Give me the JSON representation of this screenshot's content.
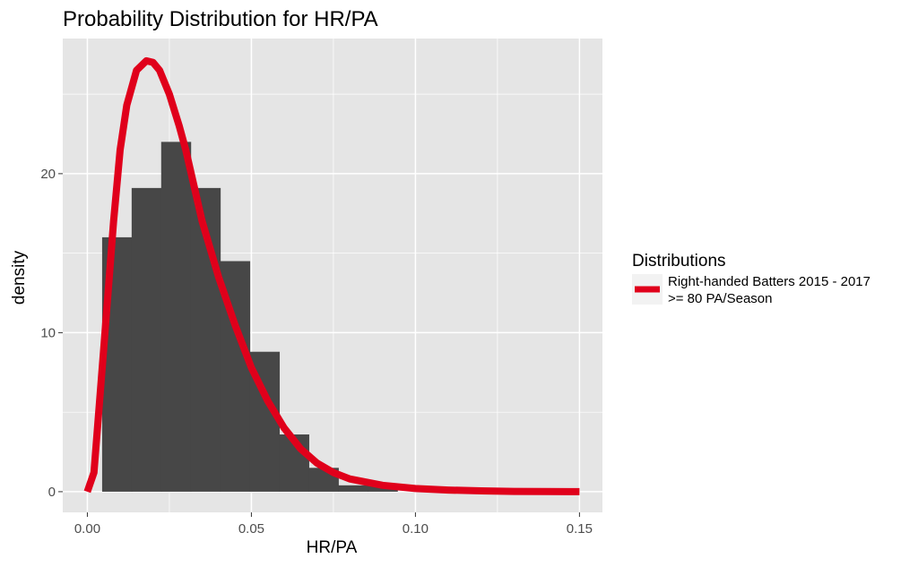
{
  "chart_data": {
    "type": "histogram+line",
    "title": "Probability Distribution for HR/PA",
    "xlabel": "HR/PA",
    "ylabel": "density",
    "xlim": [
      -0.0075,
      0.157
    ],
    "ylim": [
      -1.3,
      28.5
    ],
    "x_ticks": [
      0.0,
      0.05,
      0.1,
      0.15
    ],
    "x_tick_labels": [
      "0.00",
      "0.05",
      "0.10",
      "0.15"
    ],
    "y_ticks": [
      0,
      10,
      20
    ],
    "y_tick_labels": [
      "0",
      "10",
      "20"
    ],
    "grid": true,
    "histogram": {
      "color": "#474747",
      "bins": [
        {
          "x0": 0.0045,
          "x1": 0.0135,
          "density": 16.0
        },
        {
          "x0": 0.0135,
          "x1": 0.0225,
          "density": 19.1
        },
        {
          "x0": 0.0225,
          "x1": 0.0315,
          "density": 22.0
        },
        {
          "x0": 0.0315,
          "x1": 0.0405,
          "density": 19.1
        },
        {
          "x0": 0.0405,
          "x1": 0.0495,
          "density": 14.5
        },
        {
          "x0": 0.0495,
          "x1": 0.0585,
          "density": 8.8
        },
        {
          "x0": 0.0585,
          "x1": 0.0675,
          "density": 3.6
        },
        {
          "x0": 0.0675,
          "x1": 0.0765,
          "density": 1.5
        },
        {
          "x0": 0.0765,
          "x1": 0.0855,
          "density": 0.4
        },
        {
          "x0": 0.0855,
          "x1": 0.0945,
          "density": 0.4
        }
      ]
    },
    "series": [
      {
        "name": "Right-handed Batters 2015 - 2017\n>= 80 PA/Season",
        "color": "#e0001b",
        "x": [
          0.0,
          0.002,
          0.005,
          0.008,
          0.01,
          0.012,
          0.015,
          0.018,
          0.02,
          0.022,
          0.025,
          0.028,
          0.03,
          0.035,
          0.04,
          0.045,
          0.05,
          0.055,
          0.06,
          0.065,
          0.07,
          0.075,
          0.08,
          0.09,
          0.1,
          0.11,
          0.12,
          0.13,
          0.14,
          0.15
        ],
        "y": [
          0.0,
          1.2,
          9.0,
          17.0,
          21.5,
          24.3,
          26.5,
          27.1,
          27.0,
          26.5,
          25.0,
          23.0,
          21.5,
          17.0,
          13.5,
          10.5,
          7.8,
          5.7,
          4.0,
          2.7,
          1.8,
          1.2,
          0.8,
          0.4,
          0.2,
          0.1,
          0.05,
          0.02,
          0.01,
          0.0
        ]
      }
    ],
    "legend": {
      "title": "Distributions",
      "position": "right",
      "labels": [
        "Right-handed Batters 2015 - 2017",
        ">= 80 PA/Season"
      ]
    },
    "panel_background": "#e5e5e5",
    "grid_color": "#ffffff"
  }
}
